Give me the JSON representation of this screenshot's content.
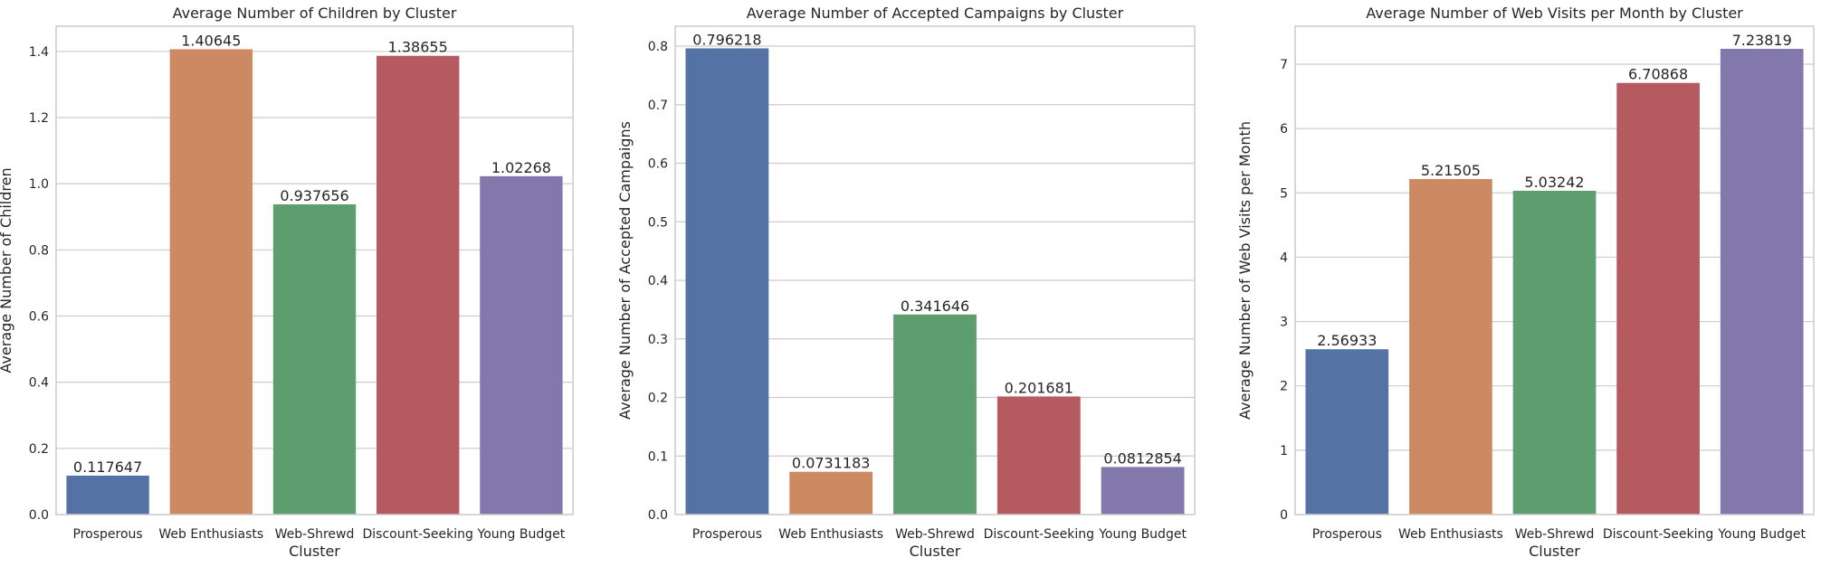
{
  "palette": [
    "#5572a5",
    "#cd8962",
    "#5e9e6e",
    "#b55a61",
    "#8378ab"
  ],
  "chart_data": [
    {
      "type": "bar",
      "title": "Average Number of Children by Cluster",
      "xlabel": "Cluster",
      "ylabel": "Average Number of Children",
      "categories": [
        "Prosperous",
        "Web Enthusiasts",
        "Web-Shrewd",
        "Discount-Seeking",
        "Young Budget"
      ],
      "values": [
        0.117647,
        1.40645,
        0.937656,
        1.38655,
        1.02268
      ],
      "value_labels": [
        "0.117647",
        "1.40645",
        "0.937656",
        "1.38655",
        "1.02268"
      ],
      "ylim": [
        0,
        1.476
      ],
      "yticks": [
        0.0,
        0.2,
        0.4,
        0.6,
        0.8,
        1.0,
        1.2,
        1.4
      ],
      "ytick_labels": [
        "0.0",
        "0.2",
        "0.4",
        "0.6",
        "0.8",
        "1.0",
        "1.2",
        "1.4"
      ],
      "grid": true
    },
    {
      "type": "bar",
      "title": "Average Number of Accepted Campaigns by Cluster",
      "xlabel": "Cluster",
      "ylabel": "Average Number of Accepted Campaigns",
      "categories": [
        "Prosperous",
        "Web Enthusiasts",
        "Web-Shrewd",
        "Discount-Seeking",
        "Young Budget"
      ],
      "values": [
        0.796218,
        0.0731183,
        0.341646,
        0.201681,
        0.0812854
      ],
      "value_labels": [
        "0.796218",
        "0.0731183",
        "0.341646",
        "0.201681",
        "0.0812854"
      ],
      "ylim": [
        0,
        0.834
      ],
      "yticks": [
        0.0,
        0.1,
        0.2,
        0.3,
        0.4,
        0.5,
        0.6,
        0.7,
        0.8
      ],
      "ytick_labels": [
        "0.0",
        "0.1",
        "0.2",
        "0.3",
        "0.4",
        "0.5",
        "0.6",
        "0.7",
        "0.8"
      ],
      "grid": true
    },
    {
      "type": "bar",
      "title": "Average Number of Web Visits per Month by Cluster",
      "xlabel": "Cluster",
      "ylabel": "Average Number of Web Visits per Month",
      "categories": [
        "Prosperous",
        "Web Enthusiasts",
        "Web-Shrewd",
        "Discount-Seeking",
        "Young Budget"
      ],
      "values": [
        2.56933,
        5.21505,
        5.03242,
        6.70868,
        7.23819
      ],
      "value_labels": [
        "2.56933",
        "5.21505",
        "5.03242",
        "6.70868",
        "7.23819"
      ],
      "ylim": [
        0,
        7.59
      ],
      "yticks": [
        0,
        1,
        2,
        3,
        4,
        5,
        6,
        7
      ],
      "ytick_labels": [
        "0",
        "1",
        "2",
        "3",
        "4",
        "5",
        "6",
        "7"
      ],
      "grid": true
    }
  ]
}
